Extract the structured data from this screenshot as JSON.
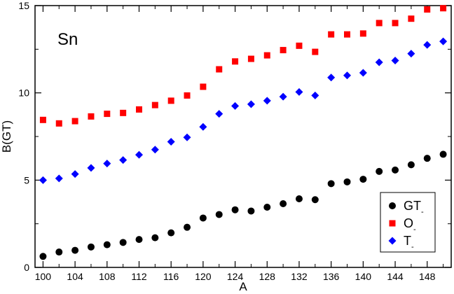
{
  "chart_data": {
    "type": "scatter",
    "title": "",
    "annotation": "Sn",
    "xlabel": "A",
    "ylabel": "B(GT)",
    "xlim": [
      99,
      151
    ],
    "ylim": [
      0,
      15
    ],
    "xticks": [
      100,
      104,
      108,
      112,
      116,
      120,
      124,
      128,
      132,
      136,
      140,
      144,
      148
    ],
    "yticks": [
      0,
      5,
      10,
      15
    ],
    "grid": false,
    "legend_position": "bottom-right",
    "legend_subscript": "-",
    "x": [
      100,
      102,
      104,
      106,
      108,
      110,
      112,
      114,
      116,
      118,
      120,
      122,
      124,
      126,
      128,
      130,
      132,
      134,
      136,
      138,
      140,
      142,
      144,
      146,
      148,
      150
    ],
    "series": [
      {
        "name": "GT",
        "marker": "circle",
        "color": "#000000",
        "values": [
          0.63,
          0.88,
          0.98,
          1.17,
          1.3,
          1.43,
          1.6,
          1.7,
          1.98,
          2.3,
          2.83,
          3.03,
          3.3,
          3.23,
          3.45,
          3.65,
          3.93,
          3.88,
          4.8,
          4.9,
          5.05,
          5.5,
          5.58,
          5.88,
          6.25,
          6.48
        ]
      },
      {
        "name": "O",
        "marker": "square",
        "color": "#ff0000",
        "values": [
          8.45,
          8.25,
          8.38,
          8.65,
          8.8,
          8.85,
          9.05,
          9.3,
          9.55,
          9.85,
          10.35,
          11.35,
          11.8,
          11.95,
          12.15,
          12.45,
          12.7,
          12.35,
          13.35,
          13.35,
          13.4,
          14.0,
          14.0,
          14.25,
          14.78,
          14.85
        ]
      },
      {
        "name": "T",
        "marker": "diamond",
        "color": "#0000ff",
        "values": [
          5.0,
          5.1,
          5.35,
          5.7,
          5.95,
          6.15,
          6.45,
          6.75,
          7.2,
          7.45,
          8.05,
          8.8,
          9.25,
          9.35,
          9.55,
          9.78,
          10.05,
          9.85,
          10.88,
          11.0,
          11.15,
          11.75,
          11.85,
          12.25,
          12.75,
          12.95
        ]
      }
    ]
  }
}
